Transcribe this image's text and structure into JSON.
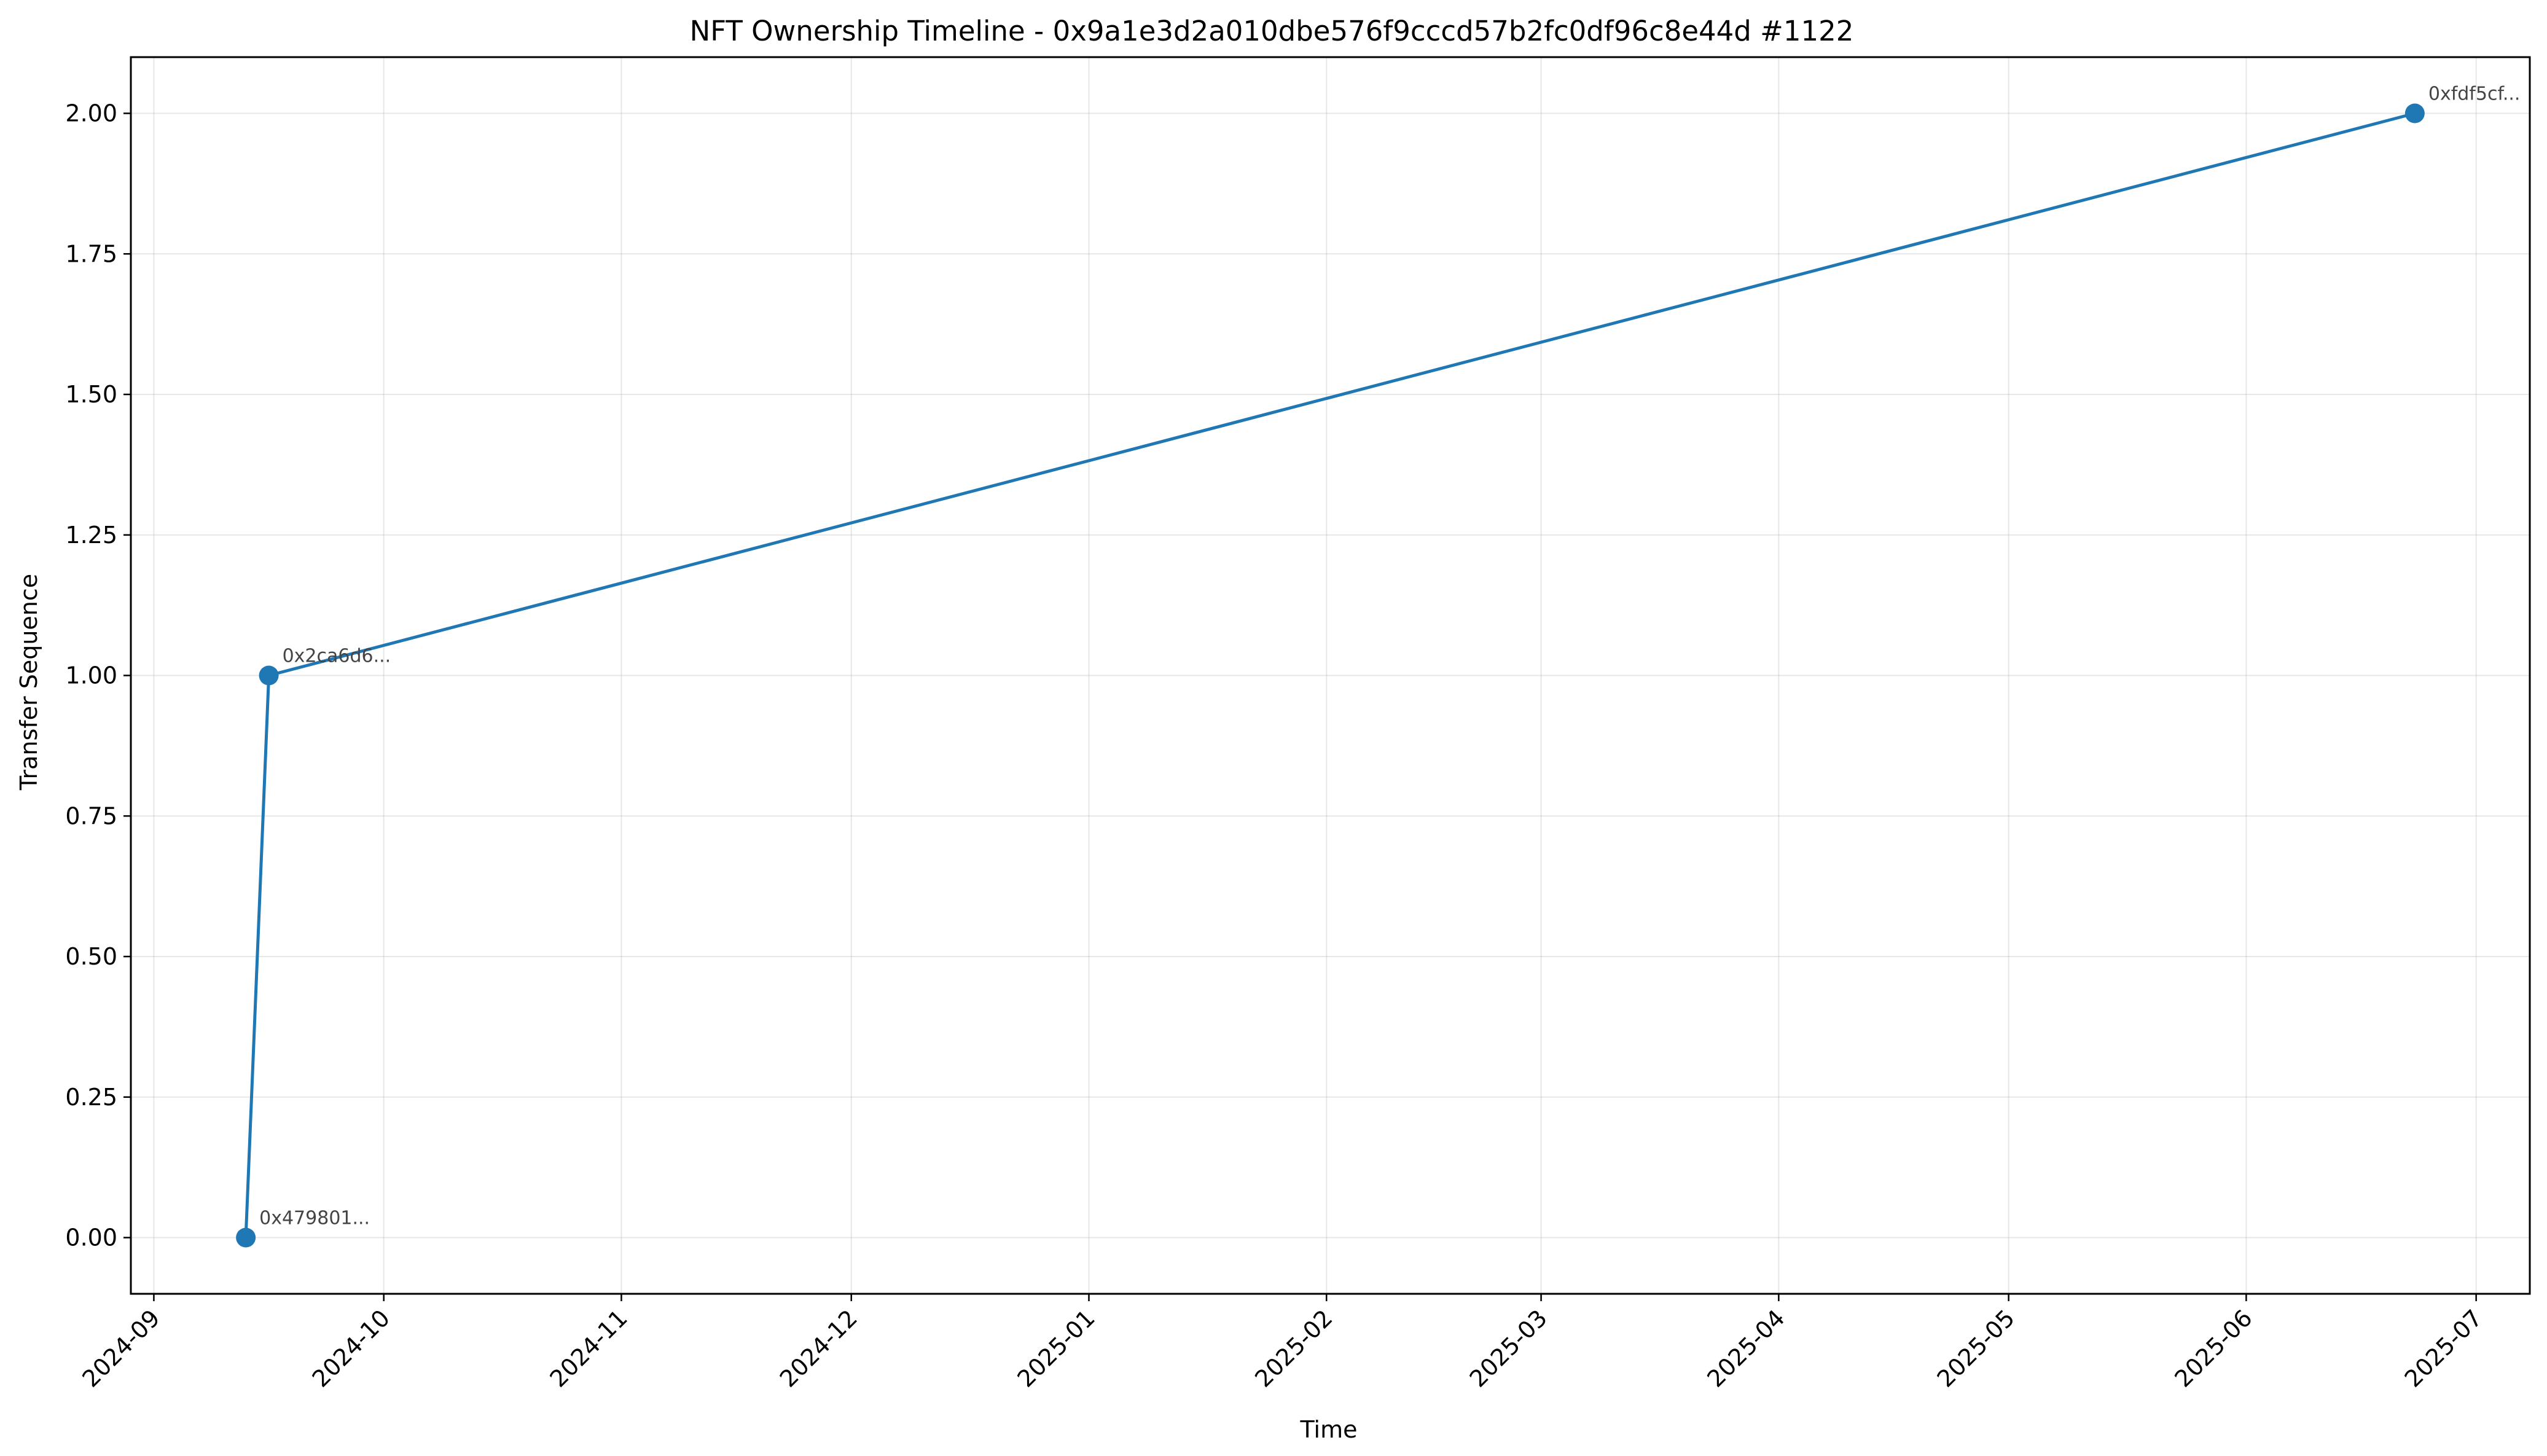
{
  "chart_data": {
    "type": "line",
    "title": "NFT Ownership Timeline - 0x9a1e3d2a010dbe576f9cccd57b2fc0df96c8e44d #1122",
    "xlabel": "Time",
    "ylabel": "Transfer Sequence",
    "x_scale": "date",
    "xlim": [
      "2024-08-29",
      "2025-07-08"
    ],
    "ylim": [
      -0.1,
      2.1
    ],
    "grid": true,
    "legend": "none",
    "x_ticks": [
      "2024-09",
      "2024-10",
      "2024-11",
      "2024-12",
      "2025-01",
      "2025-02",
      "2025-03",
      "2025-04",
      "2025-05",
      "2025-06",
      "2025-07"
    ],
    "y_ticks": [
      "0.00",
      "0.25",
      "0.50",
      "0.75",
      "1.00",
      "1.25",
      "1.50",
      "1.75",
      "2.00"
    ],
    "series": [
      {
        "color": "#1f77b4",
        "points": [
          {
            "x": "2024-09-13",
            "y": 0,
            "label": "0x479801..."
          },
          {
            "x": "2024-09-16",
            "y": 1,
            "label": "0x2ca6d6..."
          },
          {
            "x": "2025-06-23",
            "y": 2,
            "label": "0xfdf5cf..."
          }
        ]
      }
    ]
  }
}
